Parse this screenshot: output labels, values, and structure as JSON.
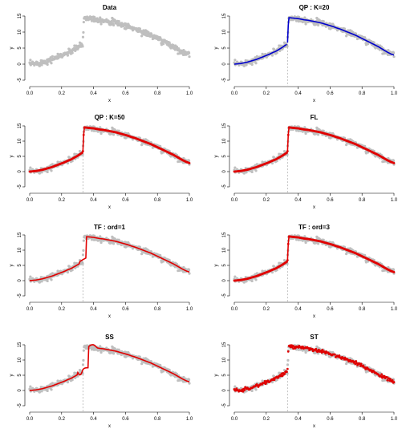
{
  "chart_data": {
    "type": "scatter",
    "layout": "4x2 grid",
    "x_ticks": [
      0.0,
      0.2,
      0.4,
      0.6,
      0.8,
      1.0
    ],
    "y_ticks": [
      -5,
      0,
      5,
      10,
      15
    ],
    "xlim": [
      0,
      1
    ],
    "ylim": [
      -5,
      16
    ],
    "xlabel": "x",
    "ylabel": "y",
    "jump_x": 0.333,
    "colors": {
      "data": "#bfbfbf",
      "fit_blue": "#0000cc",
      "fit_red": "#e00000",
      "vline": "#999999"
    },
    "data_points": {
      "x": [
        0.0,
        0.02,
        0.04,
        0.06,
        0.08,
        0.1,
        0.12,
        0.14,
        0.16,
        0.18,
        0.2,
        0.22,
        0.24,
        0.26,
        0.28,
        0.3,
        0.32,
        0.333,
        0.34,
        0.36,
        0.38,
        0.4,
        0.42,
        0.44,
        0.46,
        0.48,
        0.5,
        0.52,
        0.54,
        0.56,
        0.58,
        0.6,
        0.62,
        0.64,
        0.66,
        0.68,
        0.7,
        0.72,
        0.74,
        0.76,
        0.78,
        0.8,
        0.82,
        0.84,
        0.86,
        0.88,
        0.9,
        0.92,
        0.94,
        0.96,
        0.98,
        1.0
      ],
      "y": [
        0.0,
        0.1,
        0.2,
        0.4,
        0.6,
        0.9,
        1.2,
        1.5,
        1.9,
        2.3,
        2.7,
        3.1,
        3.6,
        4.0,
        4.6,
        5.2,
        5.9,
        6.3,
        14.5,
        14.4,
        14.3,
        14.2,
        14.0,
        13.8,
        13.7,
        13.5,
        13.3,
        13.1,
        12.9,
        12.6,
        12.3,
        12.0,
        11.7,
        11.3,
        11.0,
        10.6,
        10.2,
        9.8,
        9.4,
        9.0,
        8.5,
        8.0,
        7.5,
        7.0,
        6.5,
        6.0,
        5.5,
        4.9,
        4.3,
        3.7,
        3.2,
        2.8
      ]
    },
    "panels": [
      {
        "title": "Data",
        "fit": "none",
        "fit_color": ""
      },
      {
        "title": "QP : K=20",
        "fit": "piecewise",
        "fit_color": "#0000cc"
      },
      {
        "title": "QP : K=50",
        "fit": "piecewise",
        "fit_color": "#e00000"
      },
      {
        "title": "FL",
        "fit": "piecewise",
        "fit_color": "#e00000"
      },
      {
        "title": "TF : ord=1",
        "fit": "smooth_jump",
        "fit_color": "#e00000"
      },
      {
        "title": "TF : ord=3",
        "fit": "piecewise",
        "fit_color": "#e00000"
      },
      {
        "title": "SS",
        "fit": "smooth_overshoot",
        "fit_color": "#e00000"
      },
      {
        "title": "ST",
        "fit": "noisy",
        "fit_color": "#e00000"
      }
    ]
  }
}
